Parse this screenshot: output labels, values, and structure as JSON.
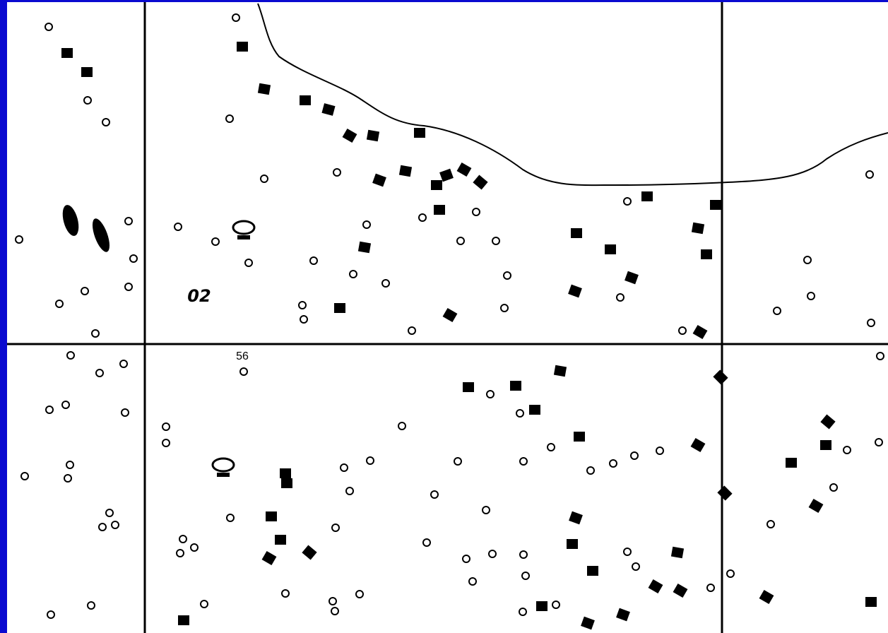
{
  "map": {
    "labels": [
      "02",
      "56"
    ]
  }
}
